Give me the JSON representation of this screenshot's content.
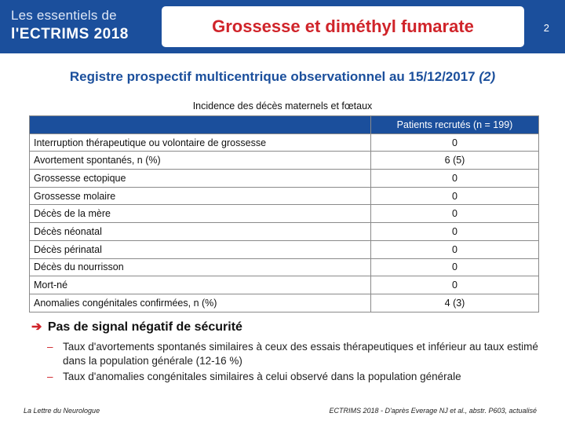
{
  "header": {
    "brand_line1": "Les essentiels de",
    "brand_line2": "l'ECTRIMS 2018",
    "title": "Grossesse et diméthyl fumarate",
    "page_number": "2"
  },
  "subtitle": {
    "main": "Registre prospectif multicentrique observationnel au 15/12/2017",
    "suffix": "(2)"
  },
  "table": {
    "caption": "Incidence des décès maternels et fœtaux",
    "column_header": "Patients recrutés (n = 199)",
    "rows": [
      {
        "label": "Interruption thérapeutique ou volontaire de grossesse",
        "value": "0"
      },
      {
        "label": "Avortement spontanés, n (%)",
        "value": "6 (5)"
      },
      {
        "label": "Grossesse ectopique",
        "value": "0"
      },
      {
        "label": "Grossesse molaire",
        "value": "0"
      },
      {
        "label": "Décès de la mère",
        "value": "0"
      },
      {
        "label": "Décès néonatal",
        "value": "0"
      },
      {
        "label": "Décès périnatal",
        "value": "0"
      },
      {
        "label": "Décès du nourrisson",
        "value": "0"
      },
      {
        "label": "Mort-né",
        "value": "0"
      },
      {
        "label": "Anomalies congénitales confirmées, n (%)",
        "value": "4 (3)"
      }
    ]
  },
  "conclusion": {
    "arrow_icon": "arrow-right-icon",
    "headline": "Pas de signal négatif de sécurité",
    "bullets": [
      "Taux d'avortements spontanés similaires à ceux des essais thérapeutiques et inférieur au taux estimé dans la population générale (12-16 %)",
      "Taux d'anomalies congénitales similaires à celui observé dans la population générale"
    ]
  },
  "footer": {
    "left": "La Lettre du Neurologue",
    "right": "ECTRIMS 2018 - D'après Everage NJ et al., abstr. P603, actualisé"
  },
  "colors": {
    "brand_blue": "#1b4f9c",
    "title_red": "#d0242a"
  }
}
